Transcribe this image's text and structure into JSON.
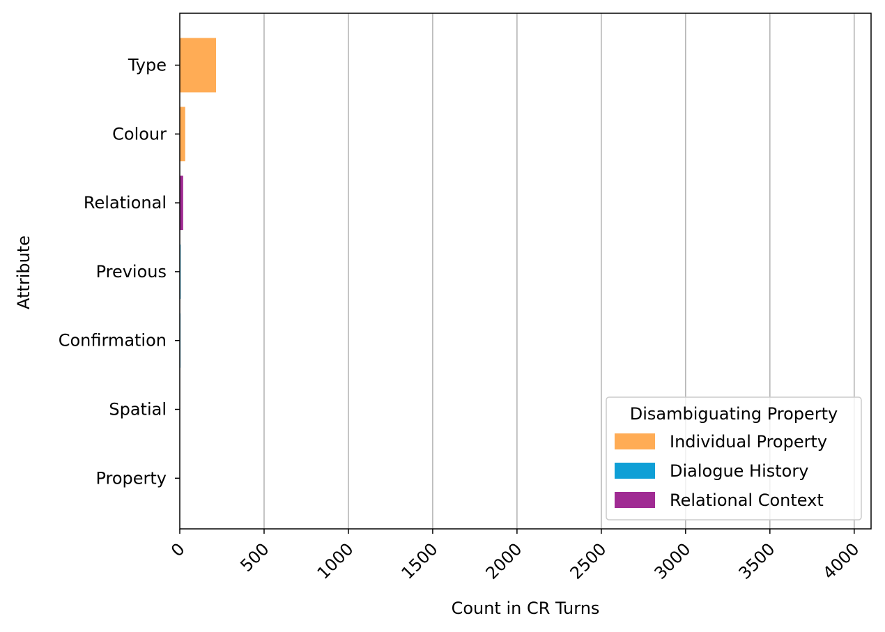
{
  "chart_data": {
    "type": "bar",
    "orientation": "horizontal",
    "xlabel": "Count in CR Turns",
    "ylabel": "Attribute",
    "xlim": [
      0,
      4100
    ],
    "xticks": [
      "0",
      "500",
      "1000",
      "1500",
      "2000",
      "2500",
      "3000",
      "3500",
      "4000"
    ],
    "grid": "x-major",
    "categories": [
      "Type",
      "Colour",
      "Relational",
      "Previous",
      "Confirmation",
      "Spatial",
      "Property"
    ],
    "series": [
      {
        "name": "Individual Property",
        "color": "#FFAC55",
        "values": [
          215,
          32,
          0,
          0,
          0,
          0,
          0
        ]
      },
      {
        "name": "Dialogue History",
        "color": "#0F9FD6",
        "values": [
          0,
          0,
          0,
          5,
          3,
          0,
          0
        ]
      },
      {
        "name": "Relational Context",
        "color": "#A02B93",
        "values": [
          0,
          0,
          20,
          0,
          0,
          0,
          0
        ]
      }
    ],
    "legend": {
      "title": "Disambiguating Property",
      "placement": "lower-right"
    }
  }
}
